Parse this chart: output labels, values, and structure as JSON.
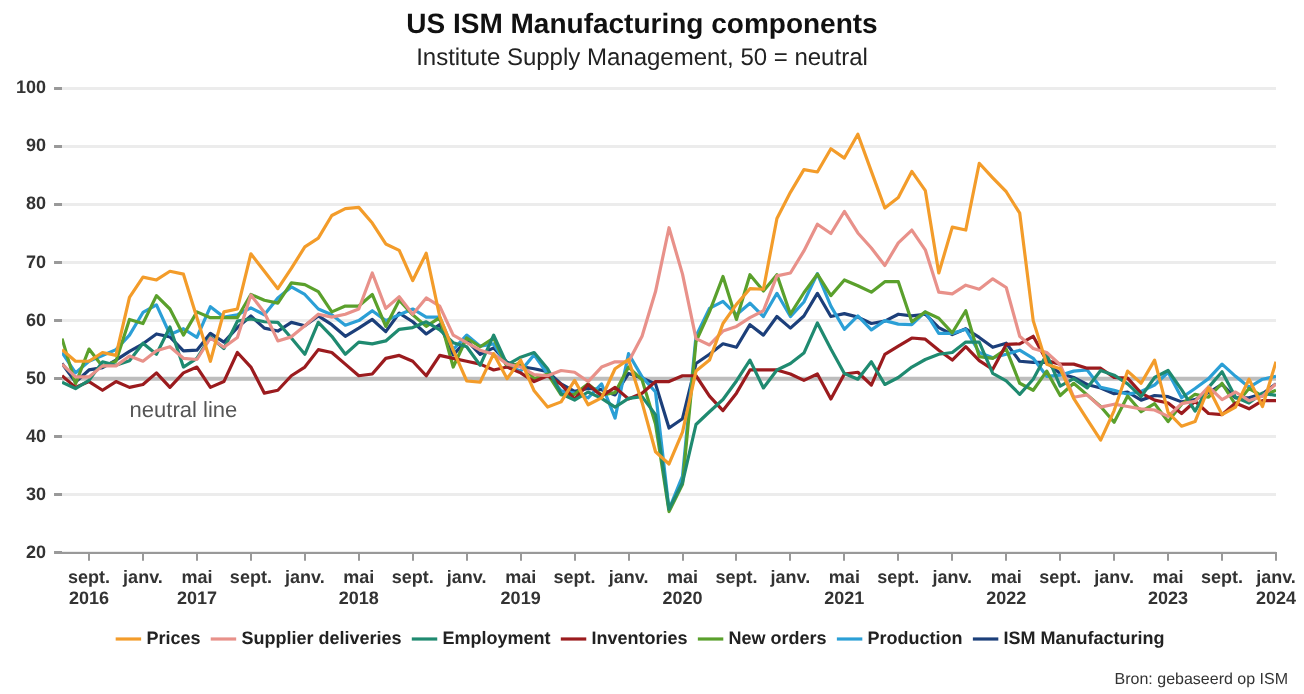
{
  "chart_data": {
    "type": "line",
    "title": "US ISM Manufacturing components",
    "subtitle": "Institute Supply Management, 50 = neutral",
    "x": [
      "2016-07",
      "2016-08",
      "2016-09",
      "2016-10",
      "2016-11",
      "2016-12",
      "2017-01",
      "2017-02",
      "2017-03",
      "2017-04",
      "2017-05",
      "2017-06",
      "2017-07",
      "2017-08",
      "2017-09",
      "2017-10",
      "2017-11",
      "2017-12",
      "2018-01",
      "2018-02",
      "2018-03",
      "2018-04",
      "2018-05",
      "2018-06",
      "2018-07",
      "2018-08",
      "2018-09",
      "2018-10",
      "2018-11",
      "2018-12",
      "2019-01",
      "2019-02",
      "2019-03",
      "2019-04",
      "2019-05",
      "2019-06",
      "2019-07",
      "2019-08",
      "2019-09",
      "2019-10",
      "2019-11",
      "2019-12",
      "2020-01",
      "2020-02",
      "2020-03",
      "2020-04",
      "2020-05",
      "2020-06",
      "2020-07",
      "2020-08",
      "2020-09",
      "2020-10",
      "2020-11",
      "2020-12",
      "2021-01",
      "2021-02",
      "2021-03",
      "2021-04",
      "2021-05",
      "2021-06",
      "2021-07",
      "2021-08",
      "2021-09",
      "2021-10",
      "2021-11",
      "2021-12",
      "2022-01",
      "2022-02",
      "2022-03",
      "2022-04",
      "2022-05",
      "2022-06",
      "2022-07",
      "2022-08",
      "2022-09",
      "2022-10",
      "2022-11",
      "2022-12",
      "2023-01",
      "2023-02",
      "2023-03",
      "2023-04",
      "2023-05",
      "2023-06",
      "2023-07",
      "2023-08",
      "2023-09",
      "2023-10",
      "2023-11",
      "2023-12",
      "2024-01"
    ],
    "series": [
      {
        "name": "Prices",
        "color": "#f39c2a",
        "values": [
          55,
          53,
          53,
          54.5,
          54,
          64,
          67.5,
          67,
          68.5,
          68,
          60.5,
          53,
          61.5,
          62,
          71.5,
          68.5,
          65.5,
          69,
          72.7,
          74.2,
          78.1,
          79.3,
          79.5,
          76.8,
          73.2,
          72.1,
          66.9,
          71.6,
          60.7,
          54.9,
          49.6,
          49.4,
          54.3,
          50,
          53.2,
          47.9,
          45.1,
          46,
          49.7,
          45.5,
          46.7,
          51.7,
          53.3,
          45.9,
          37.4,
          35.3,
          40.8,
          51.3,
          53.2,
          59.5,
          62.8,
          65.5,
          65.4,
          77.6,
          82.1,
          86,
          85.6,
          89.6,
          88,
          92.1,
          85.7,
          79.4,
          81.2,
          85.7,
          82.4,
          68.2,
          76.1,
          75.6,
          87.1,
          84.6,
          82.2,
          78.5,
          60,
          52.5,
          51.7,
          46.6,
          43,
          39.4,
          44.5,
          51.3,
          49.2,
          53.2,
          44.2,
          41.8,
          42.6,
          48.4,
          43.8,
          45.1,
          49.9,
          45.2,
          52.9
        ]
      },
      {
        "name": "Supplier deliveries",
        "color": "#e8918a",
        "values": [
          52.5,
          50.3,
          50.3,
          52.2,
          52.2,
          53.9,
          53,
          54.8,
          55.5,
          53.5,
          53.3,
          57,
          55.4,
          57.1,
          64.4,
          61.4,
          56.5,
          57.2,
          59.1,
          61.1,
          60.6,
          61.1,
          62,
          68.2,
          62.1,
          64.1,
          61.1,
          63.9,
          62.5,
          57.5,
          56.2,
          54.9,
          54.2,
          52.5,
          52,
          50.7,
          50.5,
          51.4,
          51.1,
          49.5,
          52,
          52.9,
          52.9,
          57.3,
          65,
          76,
          68,
          56.9,
          55.8,
          58.2,
          59,
          60.5,
          61.7,
          67.7,
          68.2,
          72,
          76.6,
          75,
          78.8,
          75.1,
          72.5,
          69.5,
          73.4,
          75.6,
          72.2,
          64.9,
          64.6,
          66.1,
          65.4,
          67.2,
          65.7,
          57.3,
          55.2,
          54.5,
          52.4,
          46.8,
          47.2,
          45.1,
          45.6,
          45.2,
          44.8,
          44.6,
          43.5,
          45.7,
          46.1,
          48.6,
          46.4,
          47.7,
          46.2,
          47,
          49.1
        ]
      },
      {
        "name": "Employment",
        "color": "#1f8a70",
        "values": [
          49.4,
          48.3,
          49.7,
          52.9,
          52.3,
          53.1,
          56.1,
          54.2,
          58.9,
          52,
          53.5,
          57.2,
          55.2,
          59.9,
          60.3,
          59.8,
          59.7,
          57,
          54.2,
          59.7,
          57.3,
          54.2,
          56.3,
          56,
          56.5,
          58.5,
          58.8,
          59.8,
          58.4,
          56.2,
          55.5,
          52.3,
          57.5,
          52.4,
          53.7,
          54.5,
          51.7,
          47.4,
          46.3,
          47.7,
          46.6,
          45.1,
          46.6,
          46.9,
          43.8,
          27.5,
          32.1,
          42.1,
          44.3,
          46.4,
          49.6,
          53.2,
          48.4,
          51.5,
          52.6,
          54.4,
          59.6,
          55.1,
          50.9,
          49.9,
          52.9,
          49,
          50.2,
          52,
          53.3,
          54.2,
          54.5,
          56.3,
          56.3,
          50.9,
          49.6,
          47.3,
          49.9,
          54.2,
          48.7,
          50,
          48.4,
          51.4,
          50.6,
          49.1,
          46.9,
          50.2,
          51.4,
          48.1,
          44.4,
          48.5,
          51.2,
          46.8,
          45.8,
          47.5,
          47.1
        ]
      },
      {
        "name": "Inventories",
        "color": "#9b1b1e",
        "values": [
          50.5,
          48.5,
          49.5,
          48,
          49.5,
          48.5,
          49,
          51,
          48.5,
          51,
          52,
          48.5,
          49.5,
          54.5,
          52,
          47.5,
          48,
          50.5,
          52,
          55,
          54.5,
          52.5,
          50.5,
          50.8,
          53.5,
          54,
          53,
          50.5,
          54,
          53.5,
          53,
          52.5,
          51.5,
          52,
          51,
          49.5,
          50.5,
          49,
          46.5,
          49,
          47,
          48.5,
          46.5,
          47.5,
          49.5,
          49.5,
          50.5,
          50.5,
          47,
          44.5,
          47.5,
          51.5,
          51.5,
          51.5,
          50.8,
          49.7,
          50.8,
          46.5,
          50.8,
          51.1,
          48.9,
          54.2,
          55.6,
          57,
          56.8,
          54.9,
          53.2,
          55.5,
          53.1,
          51.6,
          55.9,
          56,
          57.3,
          53.1,
          52.5,
          52.5,
          51.8,
          51.8,
          50.2,
          50.1,
          47.5,
          46.3,
          45.8,
          44,
          46.1,
          44,
          43.8,
          45.8,
          44.8,
          46.2,
          46.2
        ]
      },
      {
        "name": "New orders",
        "color": "#5aa02c",
        "values": [
          56.9,
          49.1,
          55.1,
          52.1,
          53,
          60.2,
          59.5,
          64.3,
          62,
          57.5,
          61.5,
          60.5,
          60.5,
          60.5,
          64.5,
          63.5,
          63,
          66.5,
          66.2,
          65,
          61.5,
          62.5,
          62.5,
          64.5,
          59,
          63.5,
          61,
          59,
          60.5,
          52,
          57,
          55.5,
          57,
          52,
          52.7,
          50,
          50.8,
          47.2,
          47.3,
          49.1,
          47.2,
          47.6,
          52,
          49.8,
          42.2,
          27.1,
          31.8,
          56.4,
          61.5,
          67.6,
          60.2,
          67.9,
          65.1,
          67.9,
          61.1,
          64.8,
          68,
          64.3,
          67,
          66,
          64.9,
          66.7,
          66.7,
          59.8,
          61.5,
          60.4,
          57.9,
          61.7,
          53.8,
          53.5,
          55.1,
          49.2,
          48,
          51.3,
          47.1,
          49.2,
          47.2,
          45.2,
          42.5,
          47,
          44.3,
          45.7,
          42.6,
          45.6,
          47.3,
          46.8,
          49.2,
          45.5,
          48.3,
          47,
          48
        ]
      },
      {
        "name": "Production",
        "color": "#2b9fd6",
        "values": [
          54.5,
          51,
          53,
          54,
          55,
          57.5,
          61.4,
          62.7,
          57.6,
          58.6,
          57.1,
          62.4,
          60.6,
          61,
          62.2,
          61,
          63.9,
          65.8,
          64.5,
          62,
          61,
          59.2,
          60,
          61.7,
          60,
          61,
          62,
          60.6,
          60.6,
          55,
          57.5,
          55.6,
          56,
          52.3,
          51.3,
          54.1,
          50.8,
          47.9,
          47.5,
          46.7,
          49.1,
          43.2,
          54.3,
          50.3,
          47.7,
          27.5,
          33.2,
          57.3,
          62.1,
          63.3,
          61,
          63,
          60.7,
          64.7,
          60.7,
          63.2,
          68.1,
          62.5,
          58.5,
          60.8,
          58.4,
          60,
          59.4,
          59.3,
          61.5,
          57.8,
          57.8,
          58.5,
          54.5,
          53.6,
          54.2,
          54.9,
          53.5,
          50.4,
          50.6,
          51.3,
          51.5,
          48.5,
          48,
          47.3,
          47.8,
          48.9,
          51.1,
          46.7,
          48.3,
          50,
          52.5,
          50.4,
          48.5,
          49.9,
          50.4
        ]
      },
      {
        "name": "ISM Manufacturing",
        "color": "#1c3f7a",
        "values": [
          52.6,
          49.4,
          51.5,
          51.9,
          53.2,
          54.7,
          56,
          57.7,
          57.2,
          54.8,
          54.9,
          57.8,
          56.3,
          58.8,
          60.8,
          58.7,
          58.2,
          59.7,
          59.1,
          60.8,
          59.3,
          57.3,
          58.7,
          60.2,
          58.1,
          61.3,
          59.8,
          57.7,
          59.3,
          54.1,
          56.6,
          54.2,
          55.3,
          52.8,
          52.1,
          51.7,
          51.2,
          49.1,
          47.8,
          48.3,
          48.1,
          47.2,
          50.9,
          50.1,
          49.1,
          41.5,
          43.1,
          52.6,
          54.2,
          56,
          55.4,
          59.3,
          57.5,
          60.7,
          58.7,
          60.8,
          64.7,
          60.7,
          61.2,
          60.6,
          59.5,
          59.9,
          61.1,
          60.8,
          61.1,
          58.8,
          57.6,
          58.6,
          57.1,
          55.4,
          56.1,
          53,
          52.8,
          52.8,
          50.9,
          50.2,
          49,
          48.4,
          47.4,
          47.7,
          46.3,
          47.1,
          46.9,
          46,
          46.4,
          47.6,
          49,
          46.7,
          46.7,
          47.4,
          49.1
        ]
      }
    ],
    "xlim": [
      "2016-07",
      "2024-01"
    ],
    "xticks": [
      {
        "value": "2016-09",
        "label": "sept.\n2016"
      },
      {
        "value": "2017-01",
        "label": "janv."
      },
      {
        "value": "2017-05",
        "label": "mai\n2017"
      },
      {
        "value": "2017-09",
        "label": "sept."
      },
      {
        "value": "2018-01",
        "label": "janv."
      },
      {
        "value": "2018-05",
        "label": "mai\n2018"
      },
      {
        "value": "2018-09",
        "label": "sept."
      },
      {
        "value": "2019-01",
        "label": "janv."
      },
      {
        "value": "2019-05",
        "label": "mai\n2019"
      },
      {
        "value": "2019-09",
        "label": "sept."
      },
      {
        "value": "2020-01",
        "label": "janv."
      },
      {
        "value": "2020-05",
        "label": "mai\n2020"
      },
      {
        "value": "2020-09",
        "label": "sept."
      },
      {
        "value": "2021-01",
        "label": "janv."
      },
      {
        "value": "2021-05",
        "label": "mai\n2021"
      },
      {
        "value": "2021-09",
        "label": "sept."
      },
      {
        "value": "2022-01",
        "label": "janv."
      },
      {
        "value": "2022-05",
        "label": "mai\n2022"
      },
      {
        "value": "2022-09",
        "label": "sept."
      },
      {
        "value": "2023-01",
        "label": "janv."
      },
      {
        "value": "2023-05",
        "label": "mai\n2023"
      },
      {
        "value": "2023-09",
        "label": "sept."
      },
      {
        "value": "2024-01",
        "label": "janv.\n2024"
      }
    ],
    "ylim": [
      20,
      100
    ],
    "yticks": [
      20,
      30,
      40,
      50,
      60,
      70,
      80,
      90,
      100
    ],
    "grid": "y",
    "legend": "bottom",
    "marker": "none",
    "line_style": "solid",
    "ref_lines": [
      {
        "axis": "y",
        "value": 50,
        "label": "neutral line",
        "color": "#bdbdbd"
      }
    ],
    "annotations": [
      "Bron: gebaseerd op ISM"
    ]
  }
}
